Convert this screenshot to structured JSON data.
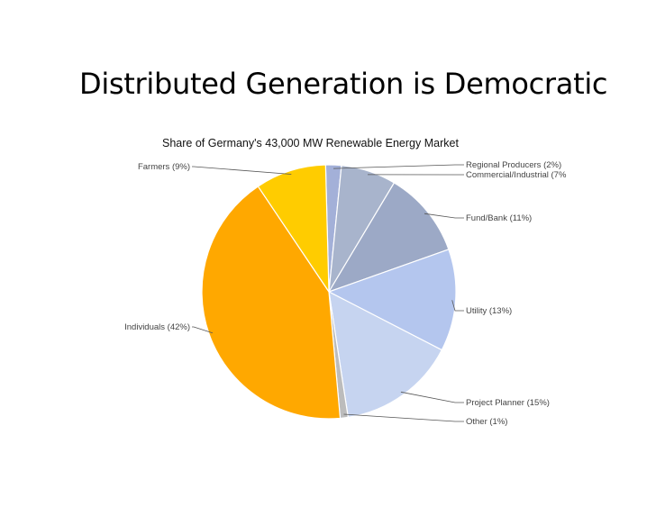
{
  "slide": {
    "title": "Distributed Generation is Democratic"
  },
  "chart_data": {
    "type": "pie",
    "title": "Share of Germany's 43,000 MW Renewable Energy Market",
    "series": [
      {
        "label": "Regional Producers (2%)",
        "value": 2,
        "color": "#a3b0d8"
      },
      {
        "label": "Commercial/Industrial (7%",
        "value": 7,
        "color": "#a8b4cc"
      },
      {
        "label": "Fund/Bank (11%)",
        "value": 11,
        "color": "#9ca9c6"
      },
      {
        "label": "Utility (13%)",
        "value": 13,
        "color": "#b4c6ee"
      },
      {
        "label": "Project Planner (15%)",
        "value": 15,
        "color": "#c6d4f0"
      },
      {
        "label": "Other (1%)",
        "value": 1,
        "color": "#bcbcbc"
      },
      {
        "label": "Individuals (42%)",
        "value": 42,
        "color": "#ffa800"
      },
      {
        "label": "Farmers (9%)",
        "value": 9,
        "color": "#ffcc00"
      }
    ],
    "legend": "leader-line labels"
  }
}
